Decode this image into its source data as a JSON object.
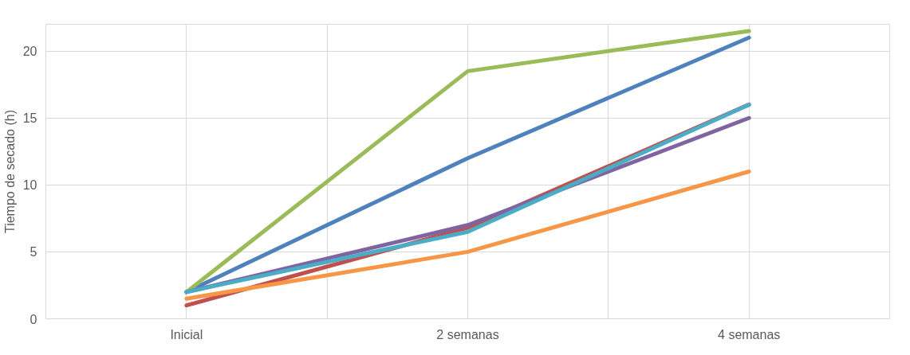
{
  "chart_data": {
    "type": "line",
    "ylabel": "Tiempo de secado (h)",
    "categories": [
      "Inicial",
      "2 semanas",
      "4 semanas"
    ],
    "series": [
      {
        "color": "#4f81bd",
        "values": [
          2,
          12,
          21
        ]
      },
      {
        "color": "#c0504d",
        "values": [
          1,
          6.8,
          16
        ]
      },
      {
        "color": "#9bbb59",
        "values": [
          2,
          18.5,
          21.5
        ]
      },
      {
        "color": "#8064a2",
        "values": [
          2,
          7,
          15
        ]
      },
      {
        "color": "#4bacc6",
        "values": [
          2,
          6.5,
          16
        ]
      },
      {
        "color": "#f79646",
        "values": [
          1.5,
          5,
          11
        ]
      }
    ],
    "ylim": [
      0,
      22
    ],
    "yticks": [
      0,
      5,
      10,
      15,
      20
    ],
    "grid": true,
    "marker": "none",
    "line_style": "solid"
  }
}
